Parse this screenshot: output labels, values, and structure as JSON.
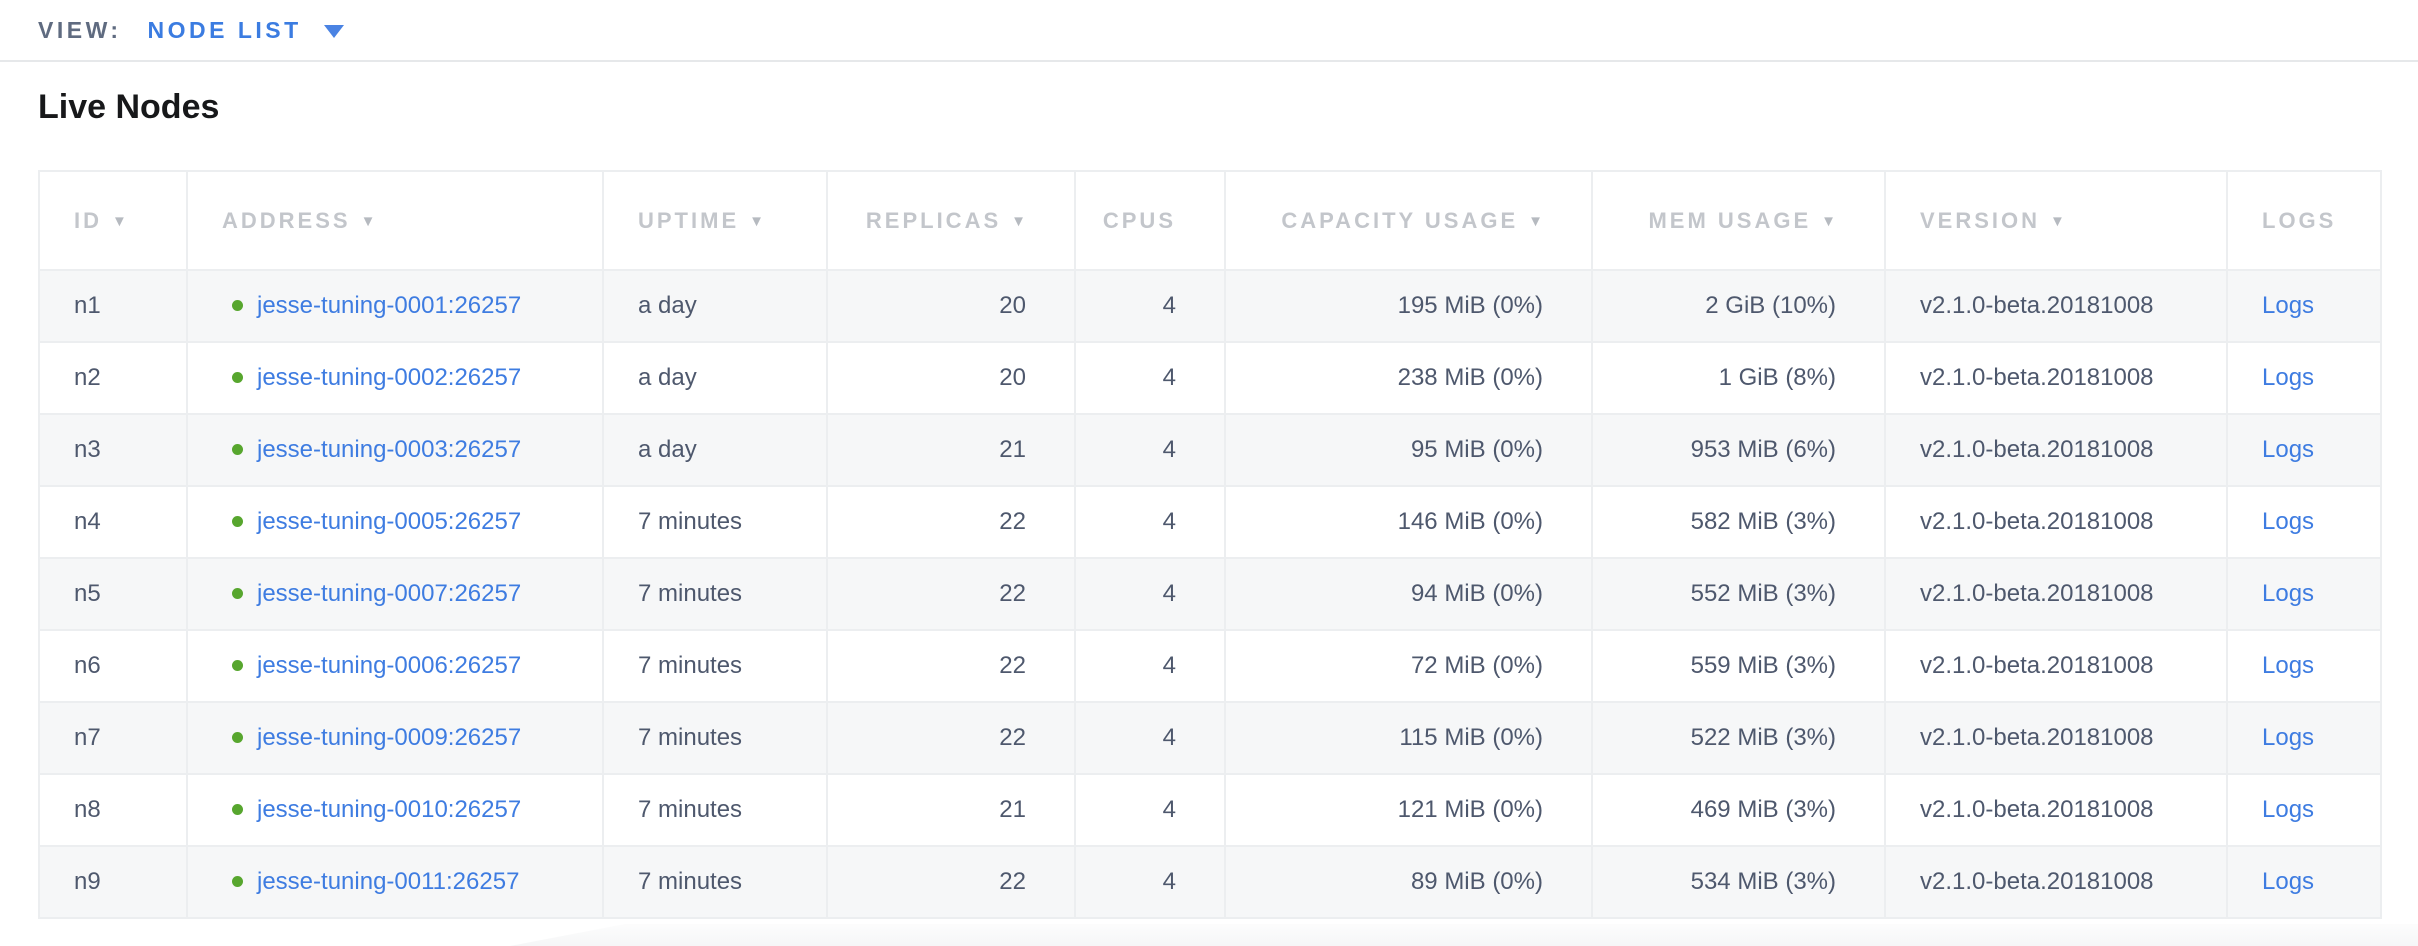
{
  "topbar": {
    "view_label": "VIEW:",
    "view_value": "NODE LIST"
  },
  "page": {
    "title": "Live Nodes"
  },
  "table": {
    "columns": [
      {
        "key": "id",
        "label": "ID",
        "sortable": true,
        "align": "left"
      },
      {
        "key": "address",
        "label": "ADDRESS",
        "sortable": true,
        "align": "left"
      },
      {
        "key": "uptime",
        "label": "UPTIME",
        "sortable": true,
        "align": "left"
      },
      {
        "key": "replicas",
        "label": "REPLICAS",
        "sortable": true,
        "align": "right"
      },
      {
        "key": "cpus",
        "label": "CPUS",
        "sortable": false,
        "align": "right"
      },
      {
        "key": "capacity",
        "label": "CAPACITY USAGE",
        "sortable": true,
        "align": "right"
      },
      {
        "key": "mem",
        "label": "MEM USAGE",
        "sortable": true,
        "align": "right"
      },
      {
        "key": "version",
        "label": "VERSION",
        "sortable": true,
        "align": "left"
      },
      {
        "key": "logs",
        "label": "LOGS",
        "sortable": false,
        "align": "left"
      }
    ],
    "rows": [
      {
        "id": "n1",
        "status": "healthy",
        "address": "jesse-tuning-0001:26257",
        "uptime": "a day",
        "replicas": "20",
        "cpus": "4",
        "capacity": "195 MiB (0%)",
        "mem": "2 GiB (10%)",
        "version": "v2.1.0-beta.20181008",
        "logs": "Logs"
      },
      {
        "id": "n2",
        "status": "healthy",
        "address": "jesse-tuning-0002:26257",
        "uptime": "a day",
        "replicas": "20",
        "cpus": "4",
        "capacity": "238 MiB (0%)",
        "mem": "1 GiB (8%)",
        "version": "v2.1.0-beta.20181008",
        "logs": "Logs"
      },
      {
        "id": "n3",
        "status": "healthy",
        "address": "jesse-tuning-0003:26257",
        "uptime": "a day",
        "replicas": "21",
        "cpus": "4",
        "capacity": "95 MiB (0%)",
        "mem": "953 MiB (6%)",
        "version": "v2.1.0-beta.20181008",
        "logs": "Logs"
      },
      {
        "id": "n4",
        "status": "healthy",
        "address": "jesse-tuning-0005:26257",
        "uptime": "7 minutes",
        "replicas": "22",
        "cpus": "4",
        "capacity": "146 MiB (0%)",
        "mem": "582 MiB (3%)",
        "version": "v2.1.0-beta.20181008",
        "logs": "Logs"
      },
      {
        "id": "n5",
        "status": "healthy",
        "address": "jesse-tuning-0007:26257",
        "uptime": "7 minutes",
        "replicas": "22",
        "cpus": "4",
        "capacity": "94 MiB (0%)",
        "mem": "552 MiB (3%)",
        "version": "v2.1.0-beta.20181008",
        "logs": "Logs"
      },
      {
        "id": "n6",
        "status": "healthy",
        "address": "jesse-tuning-0006:26257",
        "uptime": "7 minutes",
        "replicas": "22",
        "cpus": "4",
        "capacity": "72 MiB (0%)",
        "mem": "559 MiB (3%)",
        "version": "v2.1.0-beta.20181008",
        "logs": "Logs"
      },
      {
        "id": "n7",
        "status": "healthy",
        "address": "jesse-tuning-0009:26257",
        "uptime": "7 minutes",
        "replicas": "22",
        "cpus": "4",
        "capacity": "115 MiB (0%)",
        "mem": "522 MiB (3%)",
        "version": "v2.1.0-beta.20181008",
        "logs": "Logs"
      },
      {
        "id": "n8",
        "status": "healthy",
        "address": "jesse-tuning-0010:26257",
        "uptime": "7 minutes",
        "replicas": "21",
        "cpus": "4",
        "capacity": "121 MiB (0%)",
        "mem": "469 MiB (3%)",
        "version": "v2.1.0-beta.20181008",
        "logs": "Logs"
      },
      {
        "id": "n9",
        "status": "healthy",
        "address": "jesse-tuning-0011:26257",
        "uptime": "7 minutes",
        "replicas": "22",
        "cpus": "4",
        "capacity": "89 MiB (0%)",
        "mem": "534 MiB (3%)",
        "version": "v2.1.0-beta.20181008",
        "logs": "Logs"
      }
    ]
  },
  "icons": {
    "sort_arrow": "▼",
    "status_dot": "healthy-dot"
  },
  "colors": {
    "accent_blue": "#3b7ce1",
    "healthy_green": "#57a62e",
    "header_gray": "#c3c6cb",
    "body_text": "#4e586d"
  }
}
